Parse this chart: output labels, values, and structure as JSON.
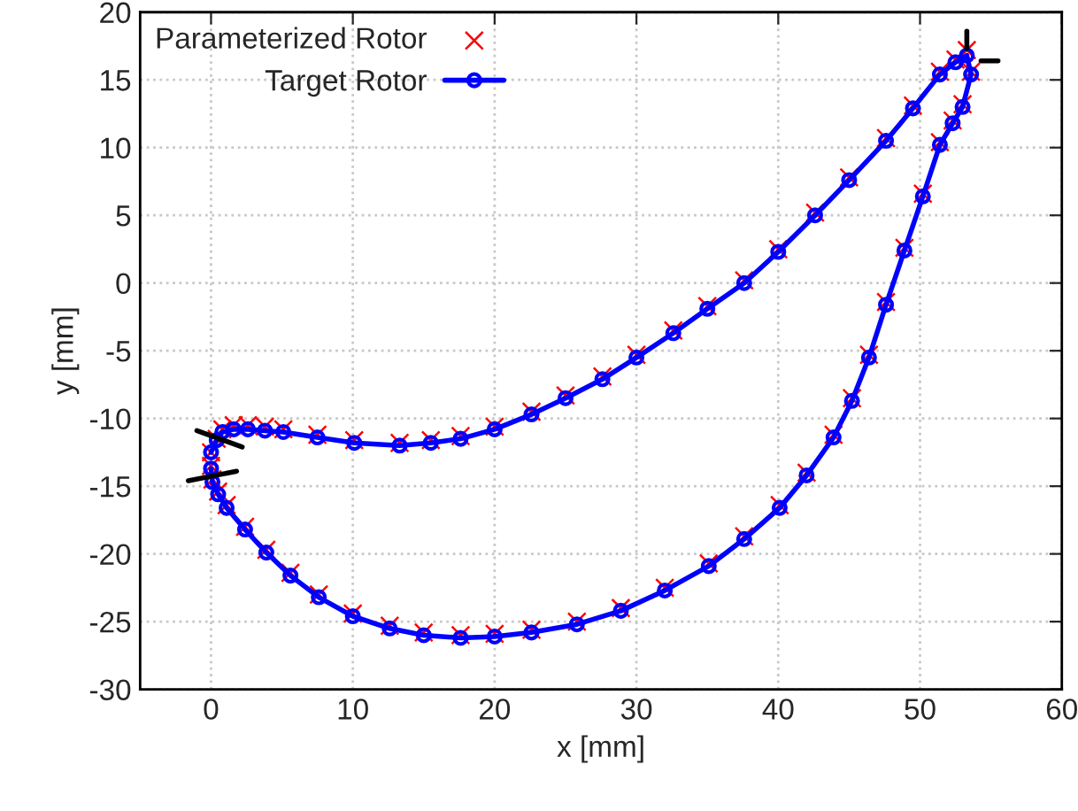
{
  "chart_data": {
    "type": "scatter",
    "xlabel": "x [mm]",
    "ylabel": "y [mm]",
    "xlim": [
      -5,
      60
    ],
    "ylim": [
      -30,
      20
    ],
    "xticks": [
      0,
      10,
      20,
      30,
      40,
      50,
      60
    ],
    "yticks": [
      -30,
      -25,
      -20,
      -15,
      -10,
      -5,
      0,
      5,
      10,
      15,
      20
    ],
    "grid": true,
    "legend": "top left",
    "series": [
      {
        "name": "Parameterized Rotor",
        "marker": "cross",
        "color": "#ff0000",
        "x": [
          0.0,
          0.4,
          0.8,
          1.6,
          2.6,
          3.8,
          5.1,
          7.5,
          10.1,
          13.3,
          15.5,
          17.6,
          20.0,
          22.6,
          25.0,
          27.6,
          30.0,
          32.6,
          35.0,
          37.6,
          40.0,
          42.6,
          45.0,
          47.6,
          49.5,
          51.4,
          52.5,
          53.3,
          53.6,
          53.0,
          52.3,
          51.4,
          50.2,
          48.9,
          47.6,
          46.4,
          45.2,
          43.9,
          42.0,
          40.1,
          37.6,
          35.1,
          32.0,
          28.9,
          25.8,
          22.6,
          20.0,
          17.6,
          15.0,
          12.6,
          10.0,
          7.6,
          5.6,
          3.9,
          2.4,
          1.1,
          0.5,
          0.1,
          0.0
        ],
        "values": [
          -12.5,
          -11.5,
          -10.8,
          -10.5,
          -10.5,
          -10.6,
          -10.8,
          -11.2,
          -11.6,
          -11.8,
          -11.6,
          -11.3,
          -10.6,
          -9.5,
          -8.3,
          -6.9,
          -5.3,
          -3.5,
          -1.7,
          0.2,
          2.5,
          5.2,
          7.8,
          10.7,
          13.1,
          15.6,
          16.5,
          17.2,
          15.6,
          13.2,
          12.0,
          10.4,
          6.6,
          2.6,
          -1.4,
          -5.3,
          -8.5,
          -11.2,
          -14.0,
          -16.4,
          -18.7,
          -20.7,
          -22.5,
          -24.0,
          -25.0,
          -25.6,
          -25.9,
          -26.0,
          -25.8,
          -25.3,
          -24.4,
          -23.0,
          -21.4,
          -19.7,
          -18.0,
          -16.4,
          -15.4,
          -14.5,
          -13.5
        ]
      },
      {
        "name": "Target Rotor",
        "type": "line",
        "marker": "circle",
        "line_style": "solid",
        "color": "#0000ff",
        "x": [
          0.0,
          0.4,
          0.8,
          1.6,
          2.6,
          3.8,
          5.1,
          7.5,
          10.1,
          13.3,
          15.5,
          17.6,
          20.0,
          22.6,
          25.0,
          27.6,
          30.0,
          32.6,
          35.0,
          37.6,
          40.0,
          42.6,
          45.0,
          47.6,
          49.5,
          51.4,
          52.5,
          53.3,
          53.6,
          53.0,
          52.3,
          51.4,
          50.2,
          48.9,
          47.6,
          46.4,
          45.2,
          43.9,
          42.0,
          40.1,
          37.6,
          35.1,
          32.0,
          28.9,
          25.8,
          22.6,
          20.0,
          17.6,
          15.0,
          12.6,
          10.0,
          7.6,
          5.6,
          3.9,
          2.4,
          1.1,
          0.5,
          0.1,
          0.0
        ],
        "values": [
          -12.5,
          -11.6,
          -11.0,
          -10.8,
          -10.8,
          -10.9,
          -11.0,
          -11.4,
          -11.8,
          -12.0,
          -11.8,
          -11.5,
          -10.8,
          -9.7,
          -8.5,
          -7.1,
          -5.5,
          -3.7,
          -1.9,
          0.0,
          2.3,
          5.0,
          7.6,
          10.5,
          12.9,
          15.4,
          16.3,
          16.8,
          15.4,
          13.0,
          11.8,
          10.2,
          6.4,
          2.4,
          -1.6,
          -5.5,
          -8.7,
          -11.4,
          -14.2,
          -16.6,
          -18.9,
          -20.9,
          -22.7,
          -24.2,
          -25.2,
          -25.8,
          -26.1,
          -26.2,
          -26.0,
          -25.5,
          -24.6,
          -23.2,
          -21.6,
          -19.9,
          -18.2,
          -16.6,
          -15.6,
          -14.7,
          -13.7
        ]
      },
      {
        "type": "line",
        "marker": "none",
        "line_style": "solid",
        "color": "#000000",
        "x": [
          -1.0,
          2.2
        ],
        "values": [
          -10.9,
          -12.1
        ]
      },
      {
        "type": "line",
        "marker": "none",
        "line_style": "solid",
        "color": "#000000",
        "x": [
          -1.6,
          1.8
        ],
        "values": [
          -14.6,
          -13.9
        ]
      },
      {
        "type": "line",
        "marker": "none",
        "line_style": "solid",
        "color": "#000000",
        "x": [
          53.3,
          53.3
        ],
        "values": [
          18.6,
          17.3
        ]
      },
      {
        "type": "line",
        "marker": "none",
        "line_style": "solid",
        "color": "#000000",
        "x": [
          54.3,
          55.5
        ],
        "values": [
          16.4,
          16.4
        ]
      }
    ]
  }
}
